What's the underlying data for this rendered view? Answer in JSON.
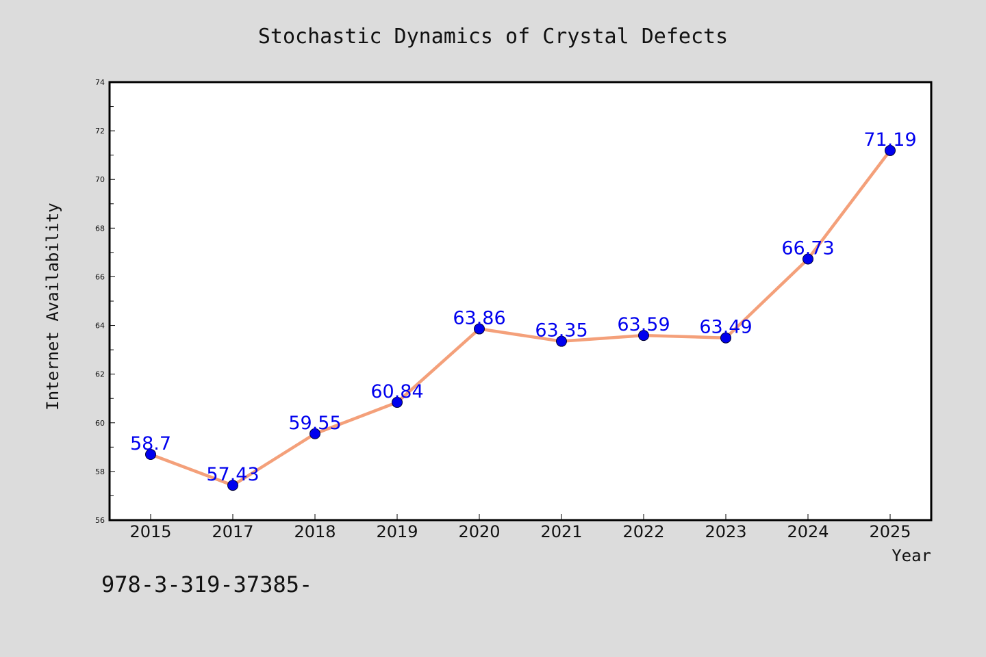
{
  "chart_data": {
    "type": "line",
    "title": "Stochastic Dynamics of Crystal Defects",
    "xlabel": "Year",
    "ylabel": "Internet Availability",
    "categories": [
      "2015",
      "2017",
      "2018",
      "2019",
      "2020",
      "2021",
      "2022",
      "2023",
      "2024",
      "2025"
    ],
    "values": [
      58.7,
      57.43,
      59.55,
      60.84,
      63.86,
      63.35,
      63.59,
      63.49,
      66.73,
      71.19
    ],
    "data_labels": [
      "58.7",
      "57.43",
      "59.55",
      "60.84",
      "63.86",
      "63.35",
      "63.59",
      "63.49",
      "66.73",
      "71.19"
    ],
    "ylim": [
      56,
      74
    ],
    "yticks": [
      "56",
      "58",
      "60",
      "62",
      "64",
      "66",
      "68",
      "70",
      "72",
      "74"
    ],
    "grid": false,
    "legend": "none",
    "colors": {
      "line": "#f4a07a",
      "marker": "#0000ee",
      "marker_edge": "#000033",
      "data_label": "#0000ee",
      "background": "#dcdcdc",
      "plot_background": "#ffffff"
    }
  },
  "footnote": "978-3-319-37385-"
}
